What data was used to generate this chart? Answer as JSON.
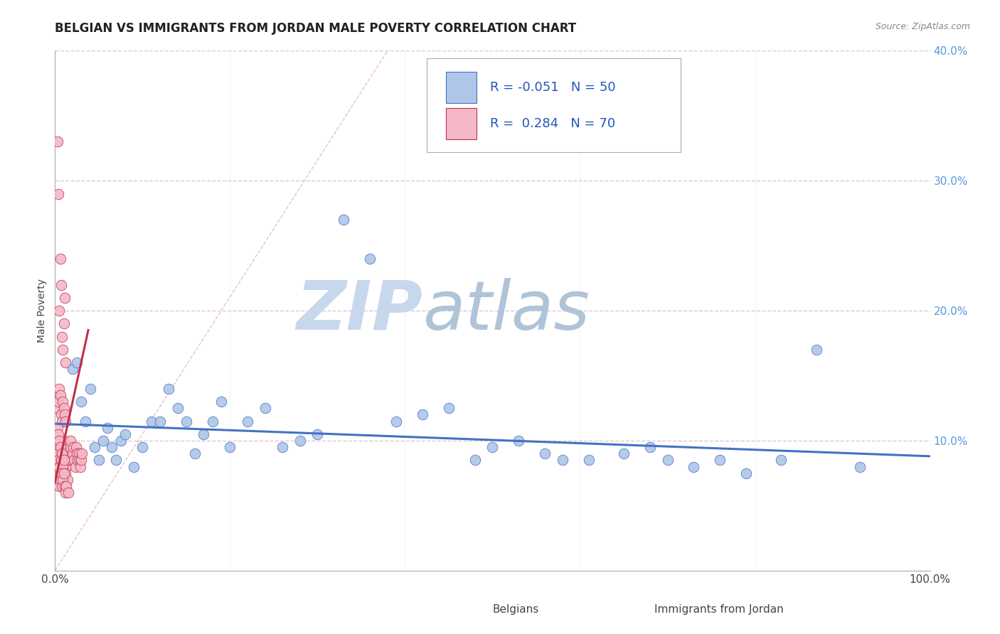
{
  "title": "BELGIAN VS IMMIGRANTS FROM JORDAN MALE POVERTY CORRELATION CHART",
  "source_text": "Source: ZipAtlas.com",
  "ylabel": "Male Poverty",
  "xlim": [
    0,
    1.0
  ],
  "ylim": [
    0,
    0.4
  ],
  "y_ticks": [
    0.1,
    0.2,
    0.3,
    0.4
  ],
  "y_tick_labels": [
    "10.0%",
    "20.0%",
    "30.0%",
    "40.0%"
  ],
  "belgian_color": "#aec6e8",
  "jordan_color": "#f5b8c8",
  "belgian_line_color": "#4472c4",
  "jordan_line_color": "#c0304a",
  "diagonal_color": "#e8b8c8",
  "background_color": "#ffffff",
  "grid_color": "#d8c8d8",
  "watermark_zip": "ZIP",
  "watermark_atlas": "atlas",
  "watermark_color_zip": "#c8d8e8",
  "watermark_color_atlas": "#b8c8d8",
  "title_fontsize": 12,
  "axis_label_fontsize": 10,
  "tick_fontsize": 11,
  "legend_fontsize": 13,
  "bel_x": [
    0.02,
    0.025,
    0.03,
    0.035,
    0.04,
    0.045,
    0.05,
    0.055,
    0.06,
    0.065,
    0.07,
    0.075,
    0.08,
    0.09,
    0.1,
    0.11,
    0.12,
    0.13,
    0.14,
    0.15,
    0.16,
    0.17,
    0.18,
    0.19,
    0.2,
    0.22,
    0.24,
    0.26,
    0.28,
    0.3,
    0.33,
    0.36,
    0.39,
    0.42,
    0.45,
    0.48,
    0.5,
    0.53,
    0.56,
    0.58,
    0.61,
    0.65,
    0.68,
    0.7,
    0.73,
    0.76,
    0.79,
    0.83,
    0.87,
    0.92
  ],
  "bel_y": [
    0.155,
    0.16,
    0.13,
    0.115,
    0.14,
    0.095,
    0.085,
    0.1,
    0.11,
    0.095,
    0.085,
    0.1,
    0.105,
    0.08,
    0.095,
    0.115,
    0.115,
    0.14,
    0.125,
    0.115,
    0.09,
    0.105,
    0.115,
    0.13,
    0.095,
    0.115,
    0.125,
    0.095,
    0.1,
    0.105,
    0.27,
    0.24,
    0.115,
    0.12,
    0.125,
    0.085,
    0.095,
    0.1,
    0.09,
    0.085,
    0.085,
    0.09,
    0.095,
    0.085,
    0.08,
    0.085,
    0.075,
    0.085,
    0.17,
    0.08
  ],
  "jor_x": [
    0.002,
    0.003,
    0.004,
    0.005,
    0.006,
    0.007,
    0.008,
    0.009,
    0.01,
    0.011,
    0.012,
    0.013,
    0.014,
    0.015,
    0.016,
    0.017,
    0.018,
    0.019,
    0.02,
    0.021,
    0.022,
    0.023,
    0.024,
    0.025,
    0.026,
    0.027,
    0.028,
    0.029,
    0.03,
    0.031,
    0.003,
    0.004,
    0.005,
    0.006,
    0.007,
    0.008,
    0.009,
    0.01,
    0.011,
    0.012,
    0.003,
    0.004,
    0.005,
    0.006,
    0.007,
    0.008,
    0.009,
    0.01,
    0.011,
    0.012,
    0.003,
    0.004,
    0.005,
    0.006,
    0.007,
    0.008,
    0.009,
    0.01,
    0.012,
    0.014,
    0.005,
    0.006,
    0.007,
    0.008,
    0.009,
    0.01,
    0.011,
    0.012,
    0.013,
    0.015
  ],
  "jor_y": [
    0.095,
    0.09,
    0.085,
    0.08,
    0.075,
    0.085,
    0.09,
    0.095,
    0.1,
    0.095,
    0.085,
    0.08,
    0.09,
    0.085,
    0.09,
    0.095,
    0.1,
    0.085,
    0.09,
    0.095,
    0.085,
    0.08,
    0.095,
    0.09,
    0.085,
    0.09,
    0.085,
    0.08,
    0.085,
    0.09,
    0.33,
    0.29,
    0.2,
    0.24,
    0.22,
    0.18,
    0.17,
    0.19,
    0.21,
    0.16,
    0.125,
    0.13,
    0.14,
    0.135,
    0.12,
    0.115,
    0.13,
    0.125,
    0.12,
    0.115,
    0.11,
    0.105,
    0.1,
    0.095,
    0.085,
    0.09,
    0.08,
    0.085,
    0.075,
    0.07,
    0.065,
    0.07,
    0.075,
    0.065,
    0.07,
    0.075,
    0.065,
    0.06,
    0.065,
    0.06
  ]
}
